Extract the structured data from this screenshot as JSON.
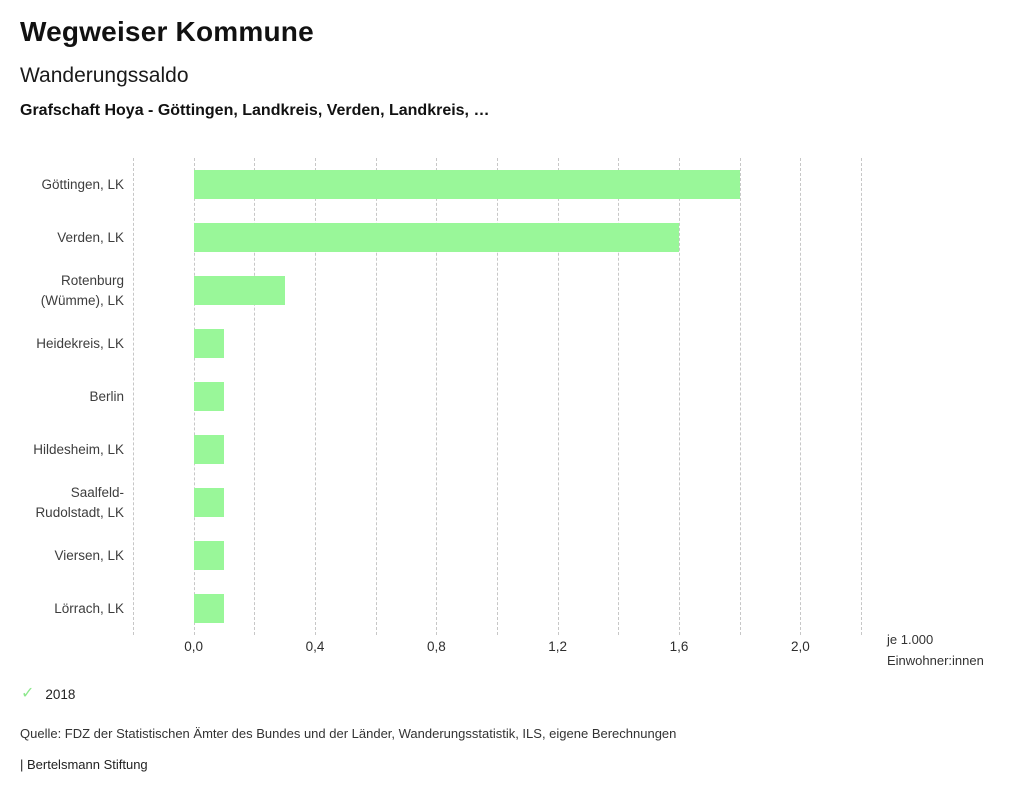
{
  "header": {
    "app_title": "Wegweiser Kommune",
    "chart_title": "Wanderungssaldo",
    "chart_subtitle": "Grafschaft Hoya - Göttingen, Landkreis, Verden, Landkreis, …"
  },
  "chart_data": {
    "type": "bar",
    "orientation": "horizontal",
    "title": "Wanderungssaldo",
    "categories": [
      "Göttingen, LK",
      "Verden, LK",
      "Rotenburg (Wümme), LK",
      "Heidekreis, LK",
      "Berlin",
      "Hildesheim, LK",
      "Saalfeld-Rudolstadt, LK",
      "Viersen, LK",
      "Lörrach, LK"
    ],
    "series": [
      {
        "name": "2018",
        "values": [
          1.8,
          1.6,
          0.3,
          0.1,
          0.1,
          0.1,
          0.1,
          0.1,
          0.1
        ]
      }
    ],
    "xlim": [
      -0.2,
      2.2
    ],
    "grid": true,
    "grid_step": 0.2,
    "x_major_ticks": [
      0.0,
      0.4,
      0.8,
      1.2,
      1.6,
      2.0
    ],
    "x_tick_labels": [
      "0,0",
      "0,4",
      "0,8",
      "1,2",
      "1,6",
      "2,0"
    ],
    "xlabel_line1": "je 1.000",
    "xlabel_line2": "Einwohner:innen",
    "legend_position": "bottom-left"
  },
  "legend": {
    "check_icon": "✓",
    "year_label": "2018"
  },
  "footer": {
    "source": "Quelle: FDZ der Statistischen Ämter des Bundes und der Länder, Wanderungsstatistik, ILS, eigene Berechnungen",
    "branding": "| Bertelsmann Stiftung"
  },
  "colors": {
    "bar": "#99f799",
    "check": "#8de88d",
    "grid": "#c7c7c7"
  }
}
